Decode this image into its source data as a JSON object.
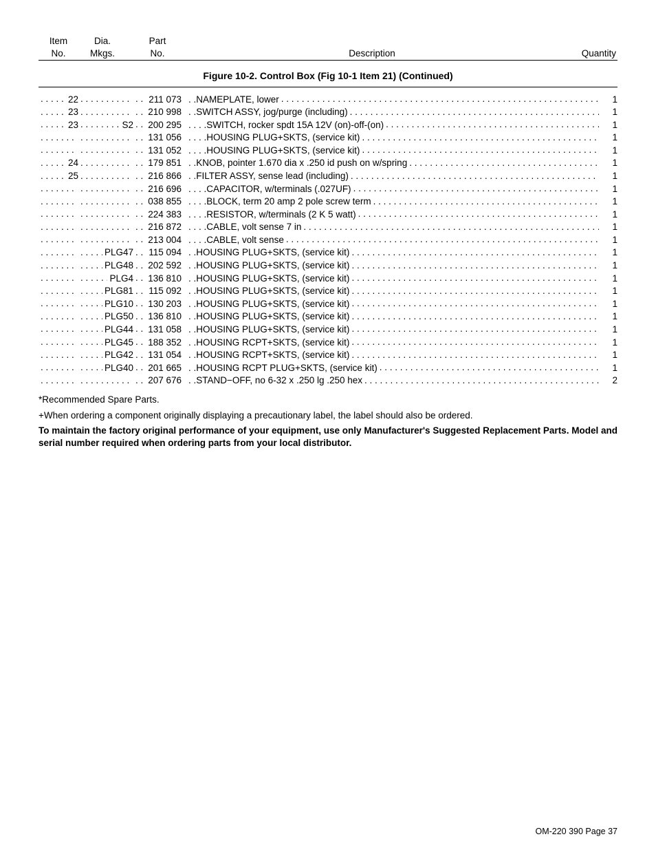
{
  "header": {
    "item_top": "Item",
    "item_bot": "No.",
    "mkgs_top": "Dia.",
    "mkgs_bot": "Mkgs.",
    "part_top": "Part",
    "part_bot": "No.",
    "desc": "Description",
    "qty": "Quantity"
  },
  "figure_title": "Figure 10-2. Control Box (Fig 10-1 Item 21) (Continued)",
  "rows": [
    {
      "item": "22",
      "mkgs": "",
      "part": "211 073",
      "desc_prefix": ". . ",
      "desc": "NAMEPLATE, lower",
      "qty": "1"
    },
    {
      "item": "23",
      "mkgs": "",
      "part": "210 998",
      "desc_prefix": ". . ",
      "desc": "SWITCH ASSY, jog/purge (including)",
      "qty": "1"
    },
    {
      "item": "23",
      "mkgs": "S2",
      "part": "200 295",
      "desc_prefix": ". . . . ",
      "desc": "SWITCH, rocker spdt 15A 12V (on)-off-(on)",
      "qty": "1"
    },
    {
      "item": "",
      "mkgs": "",
      "part": "131 056",
      "desc_prefix": ". . . . ",
      "desc": "HOUSING PLUG+SKTS, (service kit)",
      "qty": "1"
    },
    {
      "item": "",
      "mkgs": "",
      "part": "131 052",
      "desc_prefix": ". . . . ",
      "desc": "HOUSING PLUG+SKTS, (service kit)",
      "qty": "1"
    },
    {
      "item": "24",
      "mkgs": "",
      "part": "179 851",
      "desc_prefix": ". . ",
      "desc": "KNOB, pointer 1.670 dia x .250 id push on w/spring",
      "qty": "1"
    },
    {
      "item": "25",
      "mkgs": "",
      "part": "216 866",
      "desc_prefix": ". . ",
      "desc": "FILTER ASSY, sense lead (including)",
      "qty": "1"
    },
    {
      "item": "",
      "mkgs": "",
      "part": "216 696",
      "desc_prefix": ". . . . ",
      "desc": "CAPACITOR, w/terminals (.027UF)",
      "qty": "1"
    },
    {
      "item": "",
      "mkgs": "",
      "part": "038 855",
      "desc_prefix": ". . . . ",
      "desc": "BLOCK, term 20 amp 2 pole screw term",
      "qty": "1"
    },
    {
      "item": "",
      "mkgs": "",
      "part": "224 383",
      "desc_prefix": ". . . . ",
      "desc": "RESISTOR, w/terminals (2 K 5 watt)",
      "qty": "1"
    },
    {
      "item": "",
      "mkgs": "",
      "part": "216 872",
      "desc_prefix": ". . . . ",
      "desc": "CABLE, volt sense 7 in",
      "qty": "1"
    },
    {
      "item": "",
      "mkgs": "",
      "part": "213 004",
      "desc_prefix": ". . . . ",
      "desc": "CABLE, volt sense",
      "qty": "1"
    },
    {
      "item": "",
      "mkgs": "PLG47",
      "part": "115 094",
      "desc_prefix": ". . ",
      "desc": "HOUSING PLUG+SKTS, (service kit)",
      "qty": "1"
    },
    {
      "item": "",
      "mkgs": "PLG48",
      "part": "202 592",
      "desc_prefix": ". . ",
      "desc": "HOUSING PLUG+SKTS, (service kit)",
      "qty": "1"
    },
    {
      "item": "",
      "mkgs": "PLG4",
      "part": "136 810",
      "desc_prefix": ". . ",
      "desc": "HOUSING PLUG+SKTS, (service kit)",
      "qty": "1"
    },
    {
      "item": "",
      "mkgs": "PLG81",
      "part": "115 092",
      "desc_prefix": ". . ",
      "desc": "HOUSING PLUG+SKTS, (service kit)",
      "qty": "1"
    },
    {
      "item": "",
      "mkgs": "PLG10",
      "part": "130 203",
      "desc_prefix": ". . ",
      "desc": "HOUSING PLUG+SKTS, (service kit)",
      "qty": "1"
    },
    {
      "item": "",
      "mkgs": "PLG50",
      "part": "136 810",
      "desc_prefix": ". . ",
      "desc": "HOUSING PLUG+SKTS, (service kit)",
      "qty": "1"
    },
    {
      "item": "",
      "mkgs": "PLG44",
      "part": "131 058",
      "desc_prefix": ". . ",
      "desc": "HOUSING PLUG+SKTS, (service kit)",
      "qty": "1"
    },
    {
      "item": "",
      "mkgs": "PLG45",
      "part": "188 352",
      "desc_prefix": ". . ",
      "desc": "HOUSING RCPT+SKTS, (service kit)",
      "qty": "1"
    },
    {
      "item": "",
      "mkgs": "PLG42",
      "part": "131 054",
      "desc_prefix": ". . ",
      "desc": "HOUSING RCPT+SKTS, (service kit)",
      "qty": "1"
    },
    {
      "item": "",
      "mkgs": "PLG40",
      "part": "201 665",
      "desc_prefix": ". . ",
      "desc": "HOUSING RCPT PLUG+SKTS, (service kit)",
      "qty": "1"
    },
    {
      "item": "",
      "mkgs": "",
      "part": "207 676",
      "desc_prefix": ". . ",
      "desc": "STAND−OFF, no 6-32 x .250 lg .250 hex",
      "qty": "2"
    }
  ],
  "notes": {
    "spare": "*Recommended Spare Parts.",
    "label": "+When ordering a component originally displaying a precautionary label, the label should also be ordered.",
    "bold": "To maintain the factory original performance of your equipment, use only Manufacturer's Suggested Replacement Parts. Model and serial number required when ordering parts from your local distributor."
  },
  "footer": "OM-220 390 Page 37"
}
